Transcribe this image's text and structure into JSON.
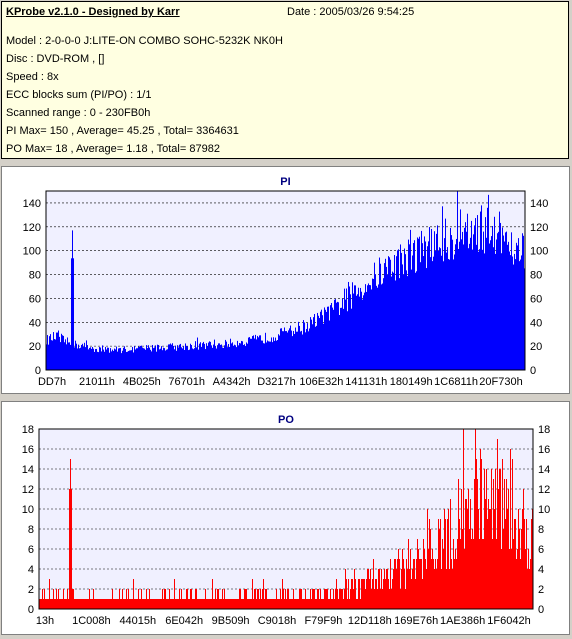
{
  "header": {
    "title": "KProbe v2.1.0 - Designed by Karr",
    "date": "Date : 2005/03/26 9:54:25",
    "lines": [
      "Model : 2-0-0-0 J:LITE-ON COMBO SOHC-5232K NK0H",
      "Disc : DVD-ROM ,  []",
      "Speed : 8x",
      "ECC blocks sum (PI/PO) : 1/1",
      "Scanned range : 0 - 230FB0h",
      "PI Max= 150 , Average= 45.25 , Total= 3364631",
      "PO Max= 18 , Average= 1.18 , Total= 87982"
    ]
  },
  "colors": {
    "pi": "#0000ff",
    "po": "#ff0000",
    "plot_bg": "#f0f0ff",
    "grid": "#000000"
  },
  "chart_data": [
    {
      "type": "area",
      "title": "PI",
      "xlabel": "",
      "ylabel": "",
      "ylim": [
        0,
        150
      ],
      "yticks": [
        0,
        20,
        40,
        60,
        80,
        100,
        120,
        140
      ],
      "x_tick_labels": [
        "DD7h",
        "21011h",
        "4B025h",
        "76701h",
        "A4342h",
        "D3217h",
        "106E32h",
        "141131h",
        "180149h",
        "1C6811h",
        "20F730h"
      ],
      "grid": true,
      "envelope": [
        [
          0.0,
          25
        ],
        [
          0.02,
          28
        ],
        [
          0.05,
          22
        ],
        [
          0.08,
          20
        ],
        [
          0.1,
          18
        ],
        [
          0.15,
          17
        ],
        [
          0.2,
          18
        ],
        [
          0.25,
          19
        ],
        [
          0.3,
          20
        ],
        [
          0.35,
          21
        ],
        [
          0.4,
          23
        ],
        [
          0.45,
          26
        ],
        [
          0.5,
          31
        ],
        [
          0.55,
          38
        ],
        [
          0.6,
          50
        ],
        [
          0.65,
          66
        ],
        [
          0.7,
          82
        ],
        [
          0.75,
          94
        ],
        [
          0.8,
          104
        ],
        [
          0.85,
          110
        ],
        [
          0.88,
          113
        ],
        [
          0.91,
          118
        ],
        [
          0.94,
          116
        ],
        [
          0.97,
          108
        ],
        [
          1.0,
          98
        ]
      ],
      "spikes": [
        [
          0.055,
          117
        ]
      ],
      "max": 150,
      "average": 45.25
    },
    {
      "type": "bar",
      "title": "PO",
      "xlabel": "",
      "ylabel": "",
      "ylim": [
        0,
        18
      ],
      "yticks": [
        0,
        2,
        4,
        6,
        8,
        10,
        12,
        14,
        16,
        18
      ],
      "x_tick_labels": [
        "13h",
        "1C008h",
        "44015h",
        "6E042h",
        "9B509h",
        "C9018h",
        "F79F9h",
        "12D118h",
        "169E76h",
        "1AE386h",
        "1F6042h"
      ],
      "grid": true,
      "envelope": [
        [
          0.0,
          1
        ],
        [
          0.55,
          1
        ],
        [
          0.6,
          1.5
        ],
        [
          0.65,
          2
        ],
        [
          0.7,
          3
        ],
        [
          0.75,
          4
        ],
        [
          0.8,
          5
        ],
        [
          0.85,
          7
        ],
        [
          0.88,
          9
        ],
        [
          0.91,
          10
        ],
        [
          0.94,
          9
        ],
        [
          0.97,
          7
        ],
        [
          1.0,
          6
        ]
      ],
      "spikes": [
        [
          0.062,
          15
        ]
      ],
      "max": 18,
      "average": 1.18
    }
  ]
}
